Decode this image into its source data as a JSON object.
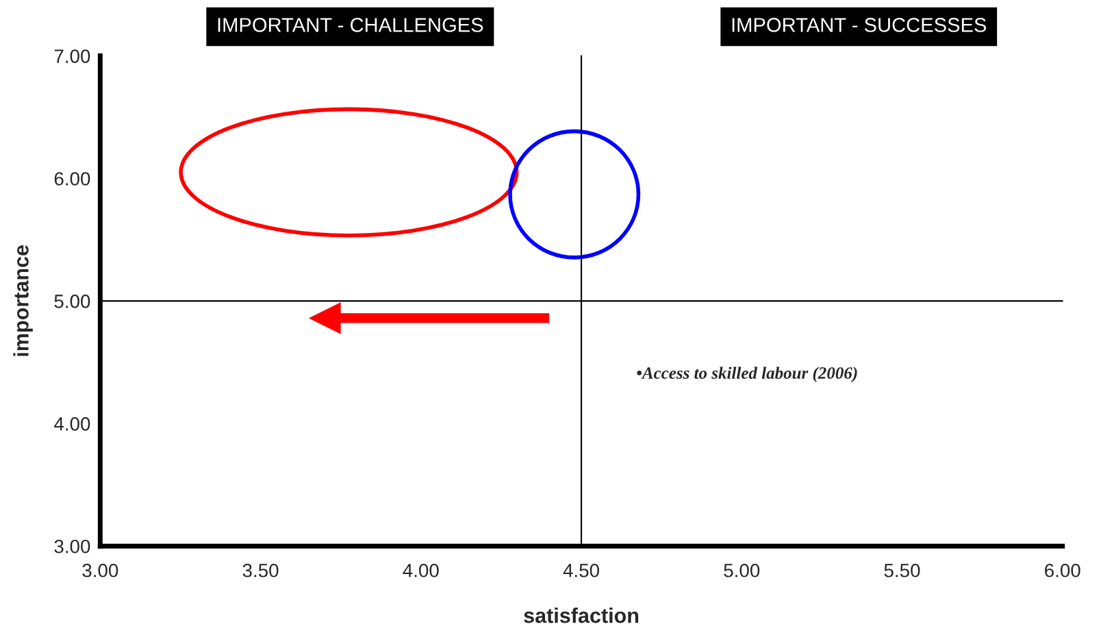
{
  "chart_data": {
    "type": "scatter",
    "xlabel": "satisfaction",
    "ylabel": "importance",
    "xlim": [
      3,
      6
    ],
    "ylim": [
      3,
      7
    ],
    "xticks": [
      {
        "value": 3,
        "label": "3.00"
      },
      {
        "value": 3.5,
        "label": "3.50"
      },
      {
        "value": 4,
        "label": "4.00"
      },
      {
        "value": 4.5,
        "label": "4.50"
      },
      {
        "value": 5,
        "label": "5.00"
      },
      {
        "value": 5.5,
        "label": "5.50"
      },
      {
        "value": 6,
        "label": "6.00"
      }
    ],
    "yticks": [
      {
        "value": 3,
        "label": "3.00"
      },
      {
        "value": 4,
        "label": "4.00"
      },
      {
        "value": 5,
        "label": "5.00"
      },
      {
        "value": 6,
        "label": "6.00"
      },
      {
        "value": 7,
        "label": "7.00"
      }
    ],
    "ref_lines": [
      {
        "axis": "x",
        "value": 4.5,
        "color": "#000000"
      },
      {
        "axis": "y",
        "value": 5,
        "color": "#000000"
      }
    ],
    "annotations": [
      "IMPORTANT - CHALLENGES",
      "IMPORTANT - SUCCESSES",
      "•Access to skilled labour (2006)"
    ],
    "grid": false,
    "legend": false
  }
}
